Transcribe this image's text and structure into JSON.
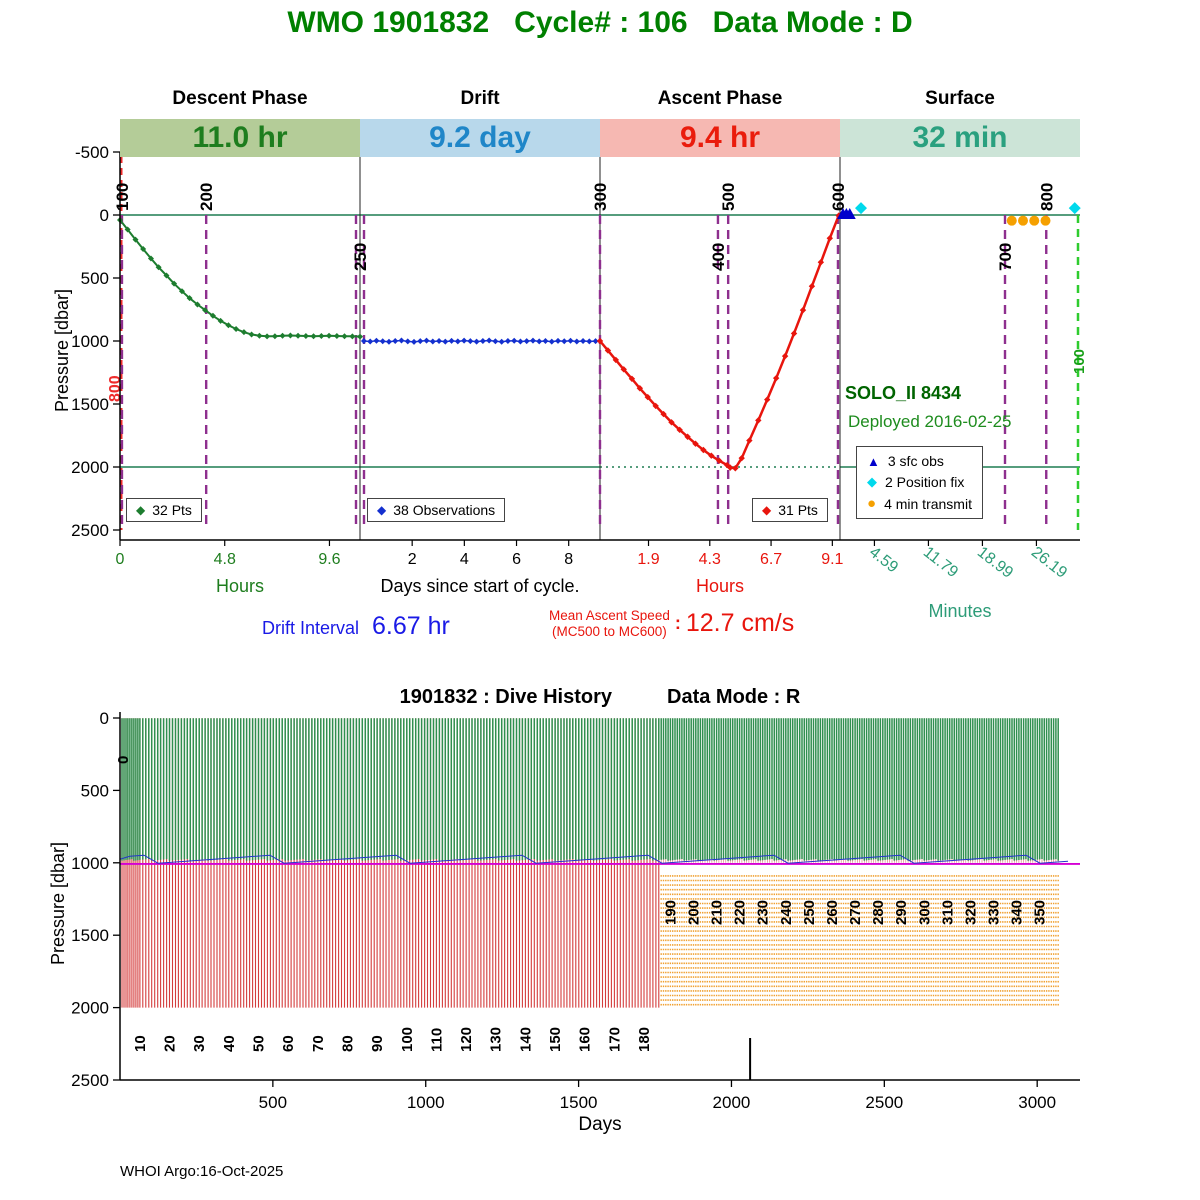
{
  "header": {
    "title": "WMO 1901832   Cycle# : 106   Data Mode : D"
  },
  "top_chart": {
    "ylabel": "Pressure [dbar]",
    "phases": [
      {
        "name": "Descent Phase",
        "duration": "11.0 hr",
        "band_bg": "#b4cc98",
        "band_fg": "#1e7d1e",
        "caption": "Hours",
        "caption_color": "#1e7d1e"
      },
      {
        "name": "Drift",
        "duration": "9.2 day",
        "band_bg": "#b8d8eb",
        "band_fg": "#1f86c8",
        "caption": "Days since start of cycle.",
        "caption_color": "#000000"
      },
      {
        "name": "Ascent Phase",
        "duration": "9.4 hr",
        "band_bg": "#f6b8b2",
        "band_fg": "#ea1c0c",
        "caption": "Hours",
        "caption_color": "#e8150d"
      },
      {
        "name": "Surface",
        "duration": "32 min",
        "band_bg": "#cce4d7",
        "band_fg": "#2aa07f",
        "caption": "Minutes",
        "caption_color": "#2d9c78"
      }
    ],
    "annotations": {
      "float_model": "SOLO_II 8434",
      "deployed": "Deployed 2016-02-25",
      "drift_interval_label": "Drift Interval",
      "drift_interval_value": "6.67 hr",
      "ascent_speed_label": "Mean Ascent Speed",
      "ascent_speed_sub": "(MC500 to MC600)",
      "colon": ":",
      "ascent_speed_value": "12.7 cm/s"
    },
    "legends": {
      "descent": {
        "glyph": "◆",
        "label": "32 Pts"
      },
      "drift": {
        "glyph": "◆",
        "label": "38 Observations"
      },
      "ascent": {
        "glyph": "◆",
        "label": "31 Pts"
      },
      "surface": [
        {
          "glyph": "▲",
          "label": "3 sfc obs"
        },
        {
          "glyph": "◆",
          "label": "2 Position fix"
        },
        {
          "glyph": "●",
          "label": "4 min transmit"
        }
      ]
    }
  },
  "bottom_chart": {
    "title": "1901832 : Dive History",
    "data_mode": "Data Mode : R",
    "xlabel": "Days",
    "ylabel": "Pressure [dbar]"
  },
  "footer": {
    "credit": "WHOI Argo:16-Oct-2025"
  },
  "chart_data": [
    {
      "type": "line",
      "description": "Single cycle pressure vs time, pressure axis inverted, four time segments",
      "ylabel": "Pressure [dbar]",
      "ylim": [
        -500,
        2500
      ],
      "yticks": [
        -500,
        0,
        500,
        1000,
        1500,
        2000,
        2500
      ],
      "segments": [
        {
          "name": "descent",
          "unit": "hours",
          "range": [
            0,
            11.0
          ],
          "tick_color": "#1e7d1e",
          "ticks": {
            "labels": [
              "0",
              "4.8",
              "9.6"
            ],
            "values": [
              0,
              4.8,
              9.6
            ]
          }
        },
        {
          "name": "drift",
          "unit": "days",
          "range": [
            0,
            9.2
          ],
          "tick_color": "#000000",
          "ticks": {
            "labels": [
              "2",
              "4",
              "6",
              "8"
            ],
            "values": [
              2,
              4,
              6,
              8
            ]
          }
        },
        {
          "name": "ascent",
          "unit": "hours",
          "range": [
            0,
            9.4
          ],
          "tick_color": "#e8150d",
          "ticks": {
            "labels": [
              "1.9",
              "4.3",
              "6.7",
              "9.1"
            ],
            "values": [
              1.9,
              4.3,
              6.7,
              9.1
            ]
          }
        },
        {
          "name": "surface",
          "unit": "minutes",
          "range": [
            0,
            32
          ],
          "tick_color": "#2d9c78",
          "ticks": {
            "labels": [
              "4.59",
              "11.79",
              "18.99",
              "26.19"
            ],
            "values": [
              4.59,
              11.79,
              18.99,
              26.19
            ]
          }
        }
      ],
      "series": [
        {
          "name": "descent",
          "legend": "32 Pts",
          "color": "#1d7d2f",
          "marker": "diamond",
          "points": [
            [
              0,
              40
            ],
            [
              0.35,
              115
            ],
            [
              0.71,
              195
            ],
            [
              1.06,
              270
            ],
            [
              1.42,
              345
            ],
            [
              1.77,
              415
            ],
            [
              2.13,
              480
            ],
            [
              2.48,
              545
            ],
            [
              2.84,
              605
            ],
            [
              3.19,
              660
            ],
            [
              3.55,
              710
            ],
            [
              3.9,
              755
            ],
            [
              4.26,
              800
            ],
            [
              4.61,
              840
            ],
            [
              4.97,
              875
            ],
            [
              5.32,
              905
            ],
            [
              5.68,
              930
            ],
            [
              6.03,
              948
            ],
            [
              6.39,
              958
            ],
            [
              6.74,
              963
            ],
            [
              7.1,
              962
            ],
            [
              7.45,
              958
            ],
            [
              7.81,
              956
            ],
            [
              8.16,
              958
            ],
            [
              8.52,
              960
            ],
            [
              8.87,
              962
            ],
            [
              9.23,
              960
            ],
            [
              9.58,
              958
            ],
            [
              9.94,
              960
            ],
            [
              10.29,
              962
            ],
            [
              10.65,
              963
            ],
            [
              11,
              965
            ]
          ]
        },
        {
          "name": "drift",
          "legend": "38 Observations",
          "color": "#1430cf",
          "marker": "diamond",
          "points": [
            [
              0.15,
              1000
            ],
            [
              0.39,
              1004
            ],
            [
              0.63,
              998
            ],
            [
              0.87,
              1002
            ],
            [
              1.11,
              1006
            ],
            [
              1.35,
              1000
            ],
            [
              1.59,
              996
            ],
            [
              1.83,
              1003
            ],
            [
              2.07,
              1007
            ],
            [
              2.31,
              1001
            ],
            [
              2.55,
              997
            ],
            [
              2.79,
              1004
            ],
            [
              3.03,
              1000
            ],
            [
              3.27,
              1005
            ],
            [
              3.51,
              999
            ],
            [
              3.75,
              1003
            ],
            [
              3.99,
              997
            ],
            [
              4.23,
              1001
            ],
            [
              4.47,
              1005
            ],
            [
              4.71,
              1000
            ],
            [
              4.95,
              996
            ],
            [
              5.19,
              1002
            ],
            [
              5.43,
              1006
            ],
            [
              5.67,
              1000
            ],
            [
              5.91,
              998
            ],
            [
              6.15,
              1004
            ],
            [
              6.39,
              1001
            ],
            [
              6.63,
              997
            ],
            [
              6.87,
              1003
            ],
            [
              7.11,
              1000
            ],
            [
              7.35,
              1005
            ],
            [
              7.59,
              999
            ],
            [
              7.83,
              1002
            ],
            [
              8.07,
              998
            ],
            [
              8.31,
              1004
            ],
            [
              8.55,
              1000
            ],
            [
              8.79,
              1003
            ],
            [
              9.03,
              1001
            ]
          ]
        },
        {
          "name": "ascent",
          "legend": "31 Pts",
          "color": "#e8150d",
          "marker": "diamond",
          "points": [
            [
              0,
              1000
            ],
            [
              0.31,
              1075
            ],
            [
              0.62,
              1150
            ],
            [
              0.93,
              1225
            ],
            [
              1.25,
              1300
            ],
            [
              1.56,
              1375
            ],
            [
              1.87,
              1445
            ],
            [
              2.18,
              1515
            ],
            [
              2.49,
              1580
            ],
            [
              2.8,
              1645
            ],
            [
              3.12,
              1705
            ],
            [
              3.43,
              1760
            ],
            [
              3.74,
              1815
            ],
            [
              4.05,
              1865
            ],
            [
              4.36,
              1910
            ],
            [
              4.67,
              1950
            ],
            [
              4.98,
              1985
            ],
            [
              5.1,
              2005
            ],
            [
              5.3,
              2010
            ],
            [
              5.55,
              1930
            ],
            [
              5.85,
              1790
            ],
            [
              6.2,
              1630
            ],
            [
              6.55,
              1465
            ],
            [
              6.9,
              1295
            ],
            [
              7.25,
              1120
            ],
            [
              7.6,
              940
            ],
            [
              7.95,
              755
            ],
            [
              8.3,
              565
            ],
            [
              8.65,
              375
            ],
            [
              9,
              185
            ],
            [
              9.35,
              5
            ]
          ]
        },
        {
          "name": "surface_obs",
          "legend": "3 sfc obs",
          "color": "#0000cc",
          "marker": "triangle",
          "points": [
            [
              0.4,
              0
            ],
            [
              0.85,
              0
            ],
            [
              1.3,
              0
            ]
          ]
        },
        {
          "name": "position_fix",
          "legend": "2 Position fix",
          "color": "#00d9ec",
          "marker": "diamond",
          "points": [
            [
              2.8,
              -55
            ],
            [
              31.3,
              -55
            ]
          ]
        },
        {
          "name": "min_transmit",
          "legend": "4 min transmit",
          "color": "#f5a000",
          "marker": "circle",
          "points": [
            [
              22.9,
              45
            ],
            [
              24.4,
              45
            ],
            [
              25.9,
              45
            ],
            [
              27.4,
              45
            ]
          ]
        }
      ],
      "mc_lines": [
        {
          "label": "100",
          "seg": 0,
          "t": 0.09,
          "side": "top"
        },
        {
          "label": "200",
          "seg": 0,
          "t": 3.95,
          "side": "top"
        },
        {
          "label": "250",
          "seg": 1,
          "t": 0,
          "side": "bottom",
          "double": true
        },
        {
          "label": "300",
          "seg": 2,
          "t": 0,
          "side": "top"
        },
        {
          "label": "400",
          "seg": 2,
          "t": 4.62,
          "side": "bottom"
        },
        {
          "label": "500",
          "seg": 2,
          "t": 5.02,
          "side": "top"
        },
        {
          "label": "600",
          "seg": 2,
          "t": 9.32,
          "side": "top"
        },
        {
          "label": "700",
          "seg": 3,
          "t": 22,
          "side": "bottom"
        },
        {
          "label": "800",
          "seg": 3,
          "t": 27.5,
          "side": "top"
        }
      ],
      "left_line_label": "800",
      "right_line_label": "100",
      "hlines": [
        0,
        2000
      ],
      "colors": {
        "hline": "#1e7d52",
        "mc_line": "#8e2f8e",
        "red_dash": "#ee2b2b",
        "green_dash": "#2ecc2e",
        "green_label": "#18a018"
      }
    },
    {
      "type": "line",
      "title": "1901832 : Dive History",
      "xlabel": "Days",
      "ylabel": "Pressure [dbar]",
      "xlim": [
        0,
        3140
      ],
      "ylim": [
        0,
        2500
      ],
      "xticks": [
        500,
        1000,
        1500,
        2000,
        2500,
        3000
      ],
      "yticks": [
        0,
        500,
        1000,
        1500,
        2000,
        2500
      ],
      "cycle_model": {
        "total": 358,
        "early_count": 10,
        "early_step": 6.5,
        "mid_step": 9.7,
        "switch_cycle": 185,
        "late_step": 7.55,
        "deep_profile_depth": 2000,
        "park_profile_top": 1085,
        "park_profile_bottom": 2000,
        "drift_depth": 1000
      },
      "cycle_labels_bottom": [
        "10",
        "20",
        "30",
        "40",
        "50",
        "60",
        "70",
        "80",
        "90",
        "100",
        "110",
        "120",
        "130",
        "140",
        "150",
        "160",
        "170",
        "180"
      ],
      "cycle_labels_top": [
        "190",
        "200",
        "210",
        "220",
        "230",
        "240",
        "250",
        "260",
        "270",
        "280",
        "290",
        "300",
        "310",
        "320",
        "330",
        "340",
        "350"
      ],
      "zero_label": "0",
      "marker_day": 2061,
      "colors": {
        "drift": "#2f8f4f",
        "deep": "#d43c3c",
        "transmit": "#f0a030",
        "park_line": "#d400d4",
        "obs_line": "#2233cc"
      }
    }
  ]
}
